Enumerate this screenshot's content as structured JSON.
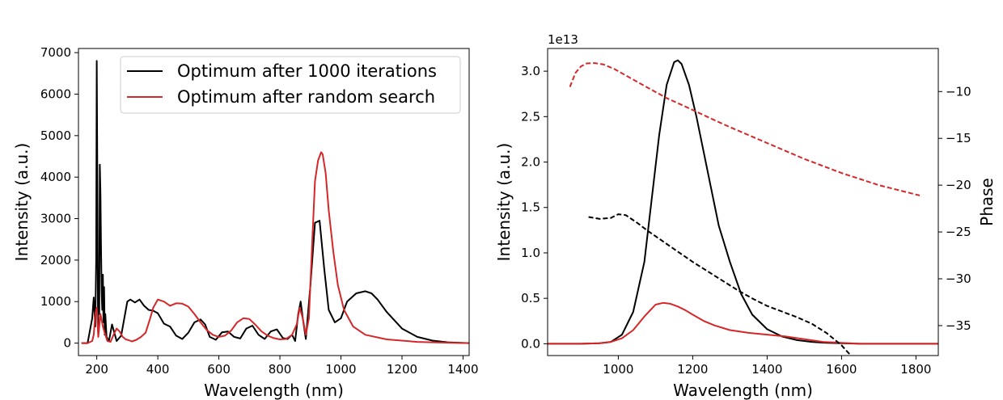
{
  "chart_data": [
    {
      "type": "line",
      "xlabel": "Wavelength (nm)",
      "ylabel": "Intensity (a.u.)",
      "xlim": [
        140,
        1420
      ],
      "ylim": [
        -300,
        7100
      ],
      "xticks": [
        200,
        400,
        600,
        800,
        1000,
        1200,
        1400
      ],
      "yticks": [
        0,
        1000,
        2000,
        3000,
        4000,
        5000,
        6000,
        7000
      ],
      "legend_position": "top-right",
      "series": [
        {
          "name": "Optimum after 1000 iterations",
          "color": "#000000",
          "x": [
            150,
            170,
            185,
            190,
            195,
            198,
            200,
            202,
            204,
            206,
            208,
            210,
            212,
            214,
            216,
            218,
            220,
            222,
            224,
            226,
            228,
            232,
            240,
            250,
            265,
            280,
            300,
            310,
            325,
            340,
            355,
            370,
            385,
            400,
            420,
            440,
            460,
            480,
            500,
            520,
            540,
            555,
            570,
            590,
            610,
            630,
            650,
            670,
            690,
            710,
            730,
            750,
            770,
            790,
            810,
            825,
            840,
            850,
            860,
            868,
            875,
            885,
            900,
            915,
            930,
            945,
            960,
            980,
            1000,
            1020,
            1050,
            1080,
            1100,
            1120,
            1150,
            1200,
            1250,
            1300,
            1350,
            1420
          ],
          "y": [
            0,
            0,
            600,
            1100,
            400,
            2000,
            6800,
            3800,
            300,
            1500,
            700,
            4300,
            3600,
            2300,
            1200,
            800,
            1650,
            500,
            1350,
            200,
            700,
            150,
            50,
            450,
            50,
            180,
            1000,
            1050,
            980,
            1050,
            900,
            800,
            780,
            720,
            470,
            400,
            180,
            100,
            250,
            500,
            570,
            450,
            150,
            80,
            260,
            280,
            150,
            110,
            350,
            420,
            200,
            100,
            280,
            330,
            120,
            100,
            200,
            50,
            700,
            1000,
            600,
            100,
            1400,
            2900,
            2950,
            1800,
            800,
            500,
            600,
            1000,
            1200,
            1250,
            1200,
            1050,
            750,
            350,
            150,
            60,
            20,
            0
          ]
        },
        {
          "name": "Optimum after random search",
          "color": "#d62728",
          "x": [
            150,
            170,
            185,
            190,
            195,
            200,
            205,
            212,
            220,
            228,
            235,
            245,
            255,
            265,
            275,
            285,
            295,
            305,
            315,
            330,
            345,
            360,
            375,
            385,
            400,
            420,
            440,
            460,
            480,
            500,
            520,
            540,
            560,
            580,
            600,
            620,
            640,
            660,
            680,
            700,
            720,
            740,
            760,
            780,
            800,
            820,
            840,
            855,
            865,
            875,
            885,
            895,
            905,
            915,
            925,
            935,
            940,
            950,
            960,
            975,
            990,
            1010,
            1040,
            1080,
            1150,
            1250,
            1350,
            1420
          ],
          "y": [
            0,
            0,
            50,
            200,
            700,
            850,
            150,
            700,
            400,
            200,
            50,
            30,
            200,
            350,
            280,
            150,
            90,
            70,
            40,
            80,
            150,
            250,
            600,
            850,
            1050,
            1000,
            900,
            960,
            950,
            880,
            700,
            500,
            320,
            200,
            150,
            180,
            300,
            500,
            600,
            580,
            440,
            280,
            180,
            120,
            90,
            100,
            200,
            450,
            850,
            600,
            200,
            600,
            2300,
            3900,
            4400,
            4600,
            4550,
            4100,
            3200,
            2200,
            1400,
            800,
            400,
            200,
            90,
            30,
            10,
            0
          ]
        }
      ]
    },
    {
      "type": "line",
      "xlabel": "Wavelength (nm)",
      "ylabel": "Intensity (a.u.)",
      "ylabel_right": "Phase",
      "offset_text": "1e13",
      "xlim": [
        810,
        1860
      ],
      "ylim": [
        -0.13,
        3.25
      ],
      "ylim_right": [
        -38.2,
        -5.4
      ],
      "xticks": [
        1000,
        1200,
        1400,
        1600,
        1800
      ],
      "yticks": [
        0.0,
        0.5,
        1.0,
        1.5,
        2.0,
        2.5,
        3.0
      ],
      "yticks_right": [
        -35,
        -30,
        -25,
        -20,
        -15,
        -10
      ],
      "series": [
        {
          "color": "#000000",
          "style": "solid",
          "x": [
            810,
            900,
            950,
            980,
            1010,
            1040,
            1070,
            1090,
            1110,
            1130,
            1150,
            1160,
            1170,
            1190,
            1210,
            1230,
            1250,
            1270,
            1300,
            1330,
            1360,
            1400,
            1440,
            1480,
            1520,
            1560,
            1600,
            1650,
            1700,
            1860
          ],
          "y": [
            0,
            0,
            0.005,
            0.02,
            0.1,
            0.35,
            0.9,
            1.6,
            2.3,
            2.85,
            3.1,
            3.12,
            3.08,
            2.85,
            2.5,
            2.1,
            1.7,
            1.3,
            0.9,
            0.55,
            0.32,
            0.16,
            0.08,
            0.04,
            0.02,
            0.01,
            0.005,
            0,
            0,
            0
          ]
        },
        {
          "color": "#d62728",
          "style": "solid",
          "x": [
            810,
            900,
            950,
            980,
            1010,
            1040,
            1070,
            1100,
            1120,
            1140,
            1160,
            1180,
            1200,
            1230,
            1260,
            1300,
            1350,
            1400,
            1450,
            1500,
            1550,
            1600,
            1650,
            1700,
            1860
          ],
          "y": [
            0,
            0,
            0.005,
            0.02,
            0.06,
            0.15,
            0.3,
            0.43,
            0.45,
            0.44,
            0.41,
            0.37,
            0.32,
            0.25,
            0.2,
            0.15,
            0.12,
            0.1,
            0.08,
            0.05,
            0.02,
            0.01,
            0,
            0,
            0
          ]
        },
        {
          "color": "#000000",
          "style": "dashed",
          "axis": "right",
          "x": [
            920,
            950,
            980,
            1000,
            1020,
            1050,
            1080,
            1120,
            1160,
            1200,
            1240,
            1280,
            1320,
            1360,
            1400,
            1440,
            1480,
            1520,
            1560,
            1600,
            1625
          ],
          "y": [
            -23.4,
            -23.6,
            -23.5,
            -23.1,
            -23.2,
            -24.0,
            -24.9,
            -26.0,
            -27.1,
            -28.2,
            -29.2,
            -30.2,
            -31.2,
            -32.1,
            -32.9,
            -33.5,
            -34.1,
            -34.8,
            -35.8,
            -37.1,
            -38.2
          ]
        },
        {
          "color": "#d62728",
          "style": "dashed",
          "axis": "right",
          "x": [
            870,
            885,
            900,
            915,
            935,
            960,
            990,
            1030,
            1080,
            1130,
            1180,
            1250,
            1300,
            1400,
            1500,
            1600,
            1700,
            1810
          ],
          "y": [
            -9.5,
            -8.0,
            -7.3,
            -7.0,
            -6.95,
            -7.1,
            -7.6,
            -8.5,
            -9.6,
            -10.7,
            -11.6,
            -12.9,
            -13.8,
            -15.5,
            -17.2,
            -18.7,
            -20.0,
            -21.1
          ]
        }
      ]
    }
  ]
}
